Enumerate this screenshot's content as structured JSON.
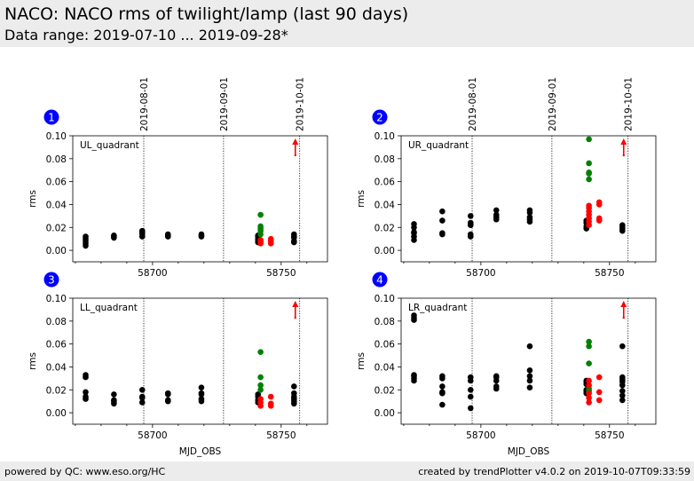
{
  "header": {
    "title": "NACO: NACO rms of twilight/lamp (last 90 days)",
    "subtitle": "Data range: 2019-07-10 ... 2019-09-28*"
  },
  "footer": {
    "left": "powered by QC: www.eso.org/HC",
    "right": "created by trendPlotter v4.0.2 on 2019-10-07T09:33:59"
  },
  "colors": {
    "normal": "#000000",
    "group_a": "#008000",
    "group_b": "#ff0000",
    "badge": "#0000ff",
    "arrow": "#ff0000"
  },
  "chart_data": [
    {
      "type": "scatter",
      "panel_number": "1",
      "label": "UL_quadrant",
      "xlabel": "",
      "ylabel": "rms",
      "xlim": [
        58669,
        58768
      ],
      "ylim": [
        -0.01,
        0.1
      ],
      "xticks": [
        58700,
        58750
      ],
      "yticks": [
        "0.00",
        "0.02",
        "0.04",
        "0.06",
        "0.08",
        "0.10"
      ],
      "date_markers": [
        {
          "x": 58696.6,
          "label": "2019-08-01"
        },
        {
          "x": 58727.6,
          "label": "2019-09-01"
        },
        {
          "x": 58757.2,
          "label": "2019-10-01"
        }
      ],
      "arrow_x": 58755.5,
      "series": [
        {
          "color": "black",
          "points": [
            [
              58674,
              0.004
            ],
            [
              58674,
              0.006
            ],
            [
              58674,
              0.008
            ],
            [
              58674,
              0.01
            ],
            [
              58674,
              0.012
            ],
            [
              58685,
              0.011
            ],
            [
              58685,
              0.012
            ],
            [
              58685,
              0.013
            ],
            [
              58696,
              0.012
            ],
            [
              58696,
              0.014
            ],
            [
              58696,
              0.015
            ],
            [
              58696,
              0.016
            ],
            [
              58696,
              0.017
            ],
            [
              58706,
              0.012
            ],
            [
              58706,
              0.013
            ],
            [
              58706,
              0.014
            ],
            [
              58719,
              0.012
            ],
            [
              58719,
              0.013
            ],
            [
              58719,
              0.014
            ],
            [
              58741,
              0.007
            ],
            [
              58741,
              0.008
            ],
            [
              58741,
              0.01
            ],
            [
              58741,
              0.012
            ],
            [
              58741,
              0.013
            ],
            [
              58755,
              0.007
            ],
            [
              58755,
              0.008
            ],
            [
              58755,
              0.011
            ],
            [
              58755,
              0.012
            ],
            [
              58755,
              0.014
            ]
          ]
        },
        {
          "color": "green",
          "points": [
            [
              58742,
              0.014
            ],
            [
              58742,
              0.017
            ],
            [
              58742,
              0.019
            ],
            [
              58742,
              0.021
            ],
            [
              58742,
              0.031
            ]
          ]
        },
        {
          "color": "red",
          "points": [
            [
              58742,
              0.006
            ],
            [
              58742,
              0.007
            ],
            [
              58742,
              0.008
            ],
            [
              58742,
              0.009
            ],
            [
              58746,
              0.006
            ],
            [
              58746,
              0.008
            ],
            [
              58746,
              0.01
            ]
          ]
        }
      ]
    },
    {
      "type": "scatter",
      "panel_number": "2",
      "label": "UR_quadrant",
      "xlabel": "",
      "ylabel": "rms",
      "xlim": [
        58669,
        58768
      ],
      "ylim": [
        -0.01,
        0.1
      ],
      "xticks": [
        58700,
        58750
      ],
      "yticks": [
        "0.00",
        "0.02",
        "0.04",
        "0.06",
        "0.08",
        "0.10"
      ],
      "date_markers": [
        {
          "x": 58696.6,
          "label": "2019-08-01"
        },
        {
          "x": 58727.6,
          "label": "2019-09-01"
        },
        {
          "x": 58757.2,
          "label": "2019-10-01"
        }
      ],
      "arrow_x": 58755.5,
      "series": [
        {
          "color": "black",
          "points": [
            [
              58674,
              0.009
            ],
            [
              58674,
              0.012
            ],
            [
              58674,
              0.015
            ],
            [
              58674,
              0.016
            ],
            [
              58674,
              0.02
            ],
            [
              58674,
              0.023
            ],
            [
              58685,
              0.014
            ],
            [
              58685,
              0.015
            ],
            [
              58685,
              0.026
            ],
            [
              58685,
              0.034
            ],
            [
              58696,
              0.012
            ],
            [
              58696,
              0.014
            ],
            [
              58696,
              0.022
            ],
            [
              58696,
              0.024
            ],
            [
              58696,
              0.03
            ],
            [
              58706,
              0.027
            ],
            [
              58706,
              0.029
            ],
            [
              58706,
              0.031
            ],
            [
              58706,
              0.035
            ],
            [
              58719,
              0.025
            ],
            [
              58719,
              0.027
            ],
            [
              58719,
              0.029
            ],
            [
              58719,
              0.033
            ],
            [
              58719,
              0.035
            ],
            [
              58741,
              0.019
            ],
            [
              58741,
              0.021
            ],
            [
              58741,
              0.024
            ],
            [
              58741,
              0.026
            ],
            [
              58755,
              0.017
            ],
            [
              58755,
              0.019
            ],
            [
              58755,
              0.021
            ],
            [
              58755,
              0.022
            ]
          ]
        },
        {
          "color": "green",
          "points": [
            [
              58742,
              0.062
            ],
            [
              58742,
              0.067
            ],
            [
              58742,
              0.068
            ],
            [
              58742,
              0.076
            ],
            [
              58742,
              0.097
            ]
          ]
        },
        {
          "color": "red",
          "points": [
            [
              58742,
              0.022
            ],
            [
              58742,
              0.025
            ],
            [
              58742,
              0.028
            ],
            [
              58742,
              0.031
            ],
            [
              58742,
              0.034
            ],
            [
              58742,
              0.037
            ],
            [
              58742,
              0.039
            ],
            [
              58746,
              0.026
            ],
            [
              58746,
              0.028
            ],
            [
              58746,
              0.04
            ],
            [
              58746,
              0.042
            ]
          ]
        }
      ]
    },
    {
      "type": "scatter",
      "panel_number": "3",
      "label": "LL_quadrant",
      "xlabel": "MJD_OBS",
      "ylabel": "rms",
      "xlim": [
        58669,
        58768
      ],
      "ylim": [
        -0.01,
        0.1
      ],
      "xticks": [
        58700,
        58750
      ],
      "yticks": [
        "0.00",
        "0.02",
        "0.04",
        "0.06",
        "0.08",
        "0.10"
      ],
      "date_markers": [
        {
          "x": 58696.6
        },
        {
          "x": 58727.6
        },
        {
          "x": 58757.2
        }
      ],
      "arrow_x": 58755.5,
      "series": [
        {
          "color": "black",
          "points": [
            [
              58674,
              0.012
            ],
            [
              58674,
              0.014
            ],
            [
              58674,
              0.018
            ],
            [
              58674,
              0.031
            ],
            [
              58674,
              0.033
            ],
            [
              58685,
              0.008
            ],
            [
              58685,
              0.01
            ],
            [
              58685,
              0.011
            ],
            [
              58685,
              0.016
            ],
            [
              58696,
              0.009
            ],
            [
              58696,
              0.013
            ],
            [
              58696,
              0.014
            ],
            [
              58696,
              0.02
            ],
            [
              58706,
              0.01
            ],
            [
              58706,
              0.011
            ],
            [
              58706,
              0.016
            ],
            [
              58706,
              0.017
            ],
            [
              58719,
              0.01
            ],
            [
              58719,
              0.012
            ],
            [
              58719,
              0.016
            ],
            [
              58719,
              0.017
            ],
            [
              58719,
              0.022
            ],
            [
              58741,
              0.009
            ],
            [
              58741,
              0.011
            ],
            [
              58741,
              0.014
            ],
            [
              58741,
              0.016
            ],
            [
              58755,
              0.008
            ],
            [
              58755,
              0.01
            ],
            [
              58755,
              0.012
            ],
            [
              58755,
              0.014
            ],
            [
              58755,
              0.017
            ],
            [
              58755,
              0.023
            ]
          ]
        },
        {
          "color": "green",
          "points": [
            [
              58742,
              0.02
            ],
            [
              58742,
              0.024
            ],
            [
              58742,
              0.031
            ],
            [
              58742,
              0.053
            ]
          ]
        },
        {
          "color": "red",
          "points": [
            [
              58742,
              0.006
            ],
            [
              58742,
              0.009
            ],
            [
              58742,
              0.012
            ],
            [
              58746,
              0.006
            ],
            [
              58746,
              0.008
            ],
            [
              58746,
              0.014
            ]
          ]
        }
      ]
    },
    {
      "type": "scatter",
      "panel_number": "4",
      "label": "LR_quadrant",
      "xlabel": "MJD_OBS",
      "ylabel": "rms",
      "xlim": [
        58669,
        58768
      ],
      "ylim": [
        -0.01,
        0.1
      ],
      "xticks": [
        58700,
        58750
      ],
      "yticks": [
        "0.00",
        "0.02",
        "0.04",
        "0.06",
        "0.08",
        "0.10"
      ],
      "date_markers": [
        {
          "x": 58696.6
        },
        {
          "x": 58727.6
        },
        {
          "x": 58757.2
        }
      ],
      "arrow_x": 58755.5,
      "series": [
        {
          "color": "black",
          "points": [
            [
              58674,
              0.028
            ],
            [
              58674,
              0.03
            ],
            [
              58674,
              0.032
            ],
            [
              58674,
              0.033
            ],
            [
              58674,
              0.081
            ],
            [
              58674,
              0.083
            ],
            [
              58674,
              0.085
            ],
            [
              58685,
              0.007
            ],
            [
              58685,
              0.017
            ],
            [
              58685,
              0.018
            ],
            [
              58685,
              0.023
            ],
            [
              58685,
              0.03
            ],
            [
              58685,
              0.032
            ],
            [
              58696,
              0.004
            ],
            [
              58696,
              0.014
            ],
            [
              58696,
              0.02
            ],
            [
              58696,
              0.028
            ],
            [
              58696,
              0.031
            ],
            [
              58706,
              0.021
            ],
            [
              58706,
              0.023
            ],
            [
              58706,
              0.028
            ],
            [
              58706,
              0.031
            ],
            [
              58706,
              0.032
            ],
            [
              58719,
              0.022
            ],
            [
              58719,
              0.028
            ],
            [
              58719,
              0.032
            ],
            [
              58719,
              0.037
            ],
            [
              58719,
              0.058
            ],
            [
              58741,
              0.017
            ],
            [
              58741,
              0.019
            ],
            [
              58741,
              0.02
            ],
            [
              58741,
              0.025
            ],
            [
              58741,
              0.027
            ],
            [
              58741,
              0.028
            ],
            [
              58755,
              0.011
            ],
            [
              58755,
              0.015
            ],
            [
              58755,
              0.019
            ],
            [
              58755,
              0.024
            ],
            [
              58755,
              0.027
            ],
            [
              58755,
              0.029
            ],
            [
              58755,
              0.031
            ],
            [
              58755,
              0.058
            ]
          ]
        },
        {
          "color": "green",
          "points": [
            [
              58742,
              0.019
            ],
            [
              58742,
              0.021
            ],
            [
              58742,
              0.043
            ],
            [
              58742,
              0.058
            ],
            [
              58742,
              0.062
            ]
          ]
        },
        {
          "color": "red",
          "points": [
            [
              58742,
              0.009
            ],
            [
              58742,
              0.013
            ],
            [
              58742,
              0.017
            ],
            [
              58742,
              0.024
            ],
            [
              58742,
              0.028
            ],
            [
              58746,
              0.011
            ],
            [
              58746,
              0.018
            ],
            [
              58746,
              0.031
            ]
          ]
        }
      ]
    }
  ]
}
